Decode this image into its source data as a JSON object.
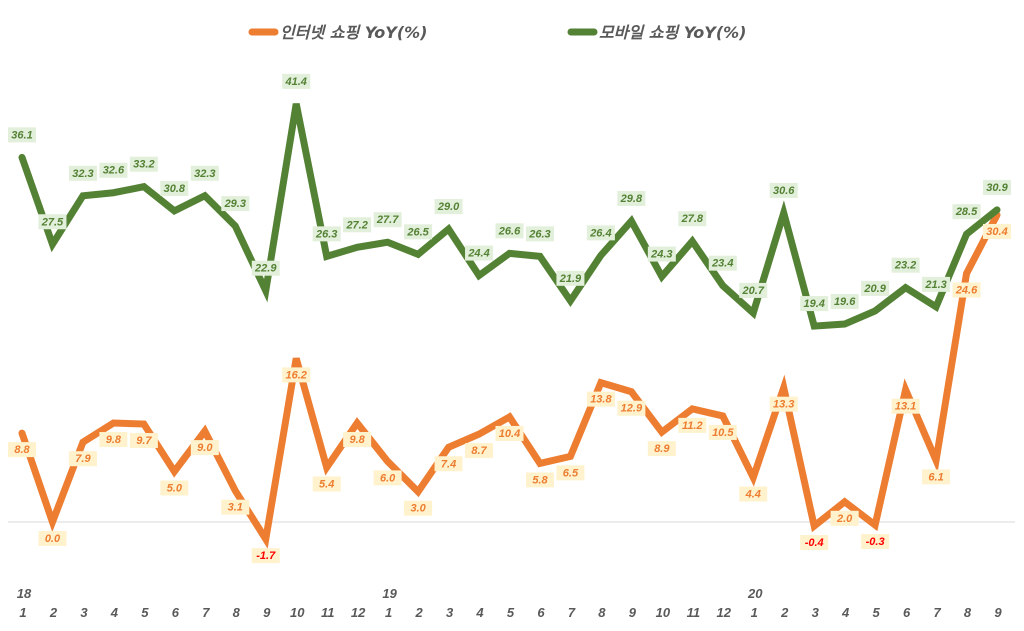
{
  "chart_data": {
    "type": "line",
    "title": "",
    "xlabel": "",
    "ylabel": "",
    "ylim": [
      -3,
      45
    ],
    "grid": false,
    "legend_position": "top",
    "x": [
      "1",
      "2",
      "3",
      "4",
      "5",
      "6",
      "7",
      "8",
      "9",
      "10",
      "11",
      "12",
      "1",
      "2",
      "3",
      "4",
      "5",
      "6",
      "7",
      "8",
      "9",
      "10",
      "11",
      "12",
      "1",
      "2",
      "3",
      "4",
      "5",
      "6",
      "7",
      "8",
      "9"
    ],
    "year_labels": [
      {
        "index": 0,
        "label": "18"
      },
      {
        "index": 12,
        "label": "19"
      },
      {
        "index": 24,
        "label": "20"
      }
    ],
    "series": [
      {
        "name": "인터넷 쇼핑 YoY(%)",
        "color": "#ED7D31",
        "label_bg": "#FFF2CC",
        "label_color": "#ED7D31",
        "negative_label_color": "#FF0000",
        "values": [
          8.8,
          0.0,
          7.9,
          9.8,
          9.7,
          5.0,
          9.0,
          3.1,
          -1.7,
          16.2,
          5.4,
          9.8,
          6.0,
          3.0,
          7.4,
          8.7,
          10.4,
          5.8,
          6.5,
          13.8,
          12.9,
          8.9,
          11.2,
          10.5,
          4.4,
          13.3,
          -0.4,
          2.0,
          -0.3,
          13.1,
          6.1,
          24.6,
          30.4
        ]
      },
      {
        "name": "모바일 쇼핑 YoY(%)",
        "color": "#548235",
        "label_bg": "#E2EFDA",
        "label_color": "#548235",
        "values": [
          36.1,
          27.5,
          32.3,
          32.6,
          33.2,
          30.8,
          32.3,
          29.3,
          22.9,
          41.4,
          26.3,
          27.2,
          27.7,
          26.5,
          29.0,
          24.4,
          26.6,
          26.3,
          21.9,
          26.4,
          29.8,
          24.3,
          27.8,
          23.4,
          20.7,
          30.6,
          19.4,
          19.6,
          20.9,
          23.2,
          21.3,
          28.5,
          30.9
        ]
      }
    ]
  }
}
